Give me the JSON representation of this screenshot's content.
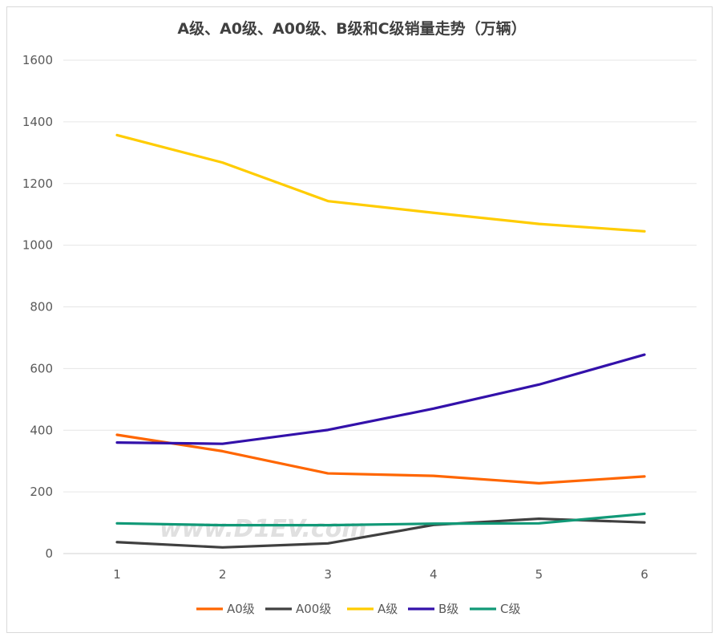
{
  "chart_data": {
    "type": "line",
    "title": "A级、A0级、A00级、B级和C级销量走势（万辆）",
    "x": [
      1,
      2,
      3,
      4,
      5,
      6
    ],
    "ylim": [
      0,
      1600
    ],
    "yticks": [
      0,
      200,
      400,
      600,
      800,
      1000,
      1200,
      1400,
      1600
    ],
    "grid": true,
    "legend_position": "bottom",
    "series": [
      {
        "name": "A0级",
        "color": "#ff6600",
        "values": [
          385,
          332,
          260,
          252,
          228,
          250
        ]
      },
      {
        "name": "A00级",
        "color": "#404040",
        "values": [
          37,
          20,
          33,
          93,
          113,
          101
        ]
      },
      {
        "name": "A级",
        "color": "#ffcc00",
        "values": [
          1357,
          1268,
          1143,
          1105,
          1069,
          1045
        ]
      },
      {
        "name": "B级",
        "color": "#3311aa",
        "values": [
          360,
          356,
          401,
          470,
          548,
          645
        ]
      },
      {
        "name": "C级",
        "color": "#119977",
        "values": [
          98,
          92,
          92,
          97,
          98,
          129
        ]
      }
    ]
  },
  "watermark": "www.D1EV.com"
}
